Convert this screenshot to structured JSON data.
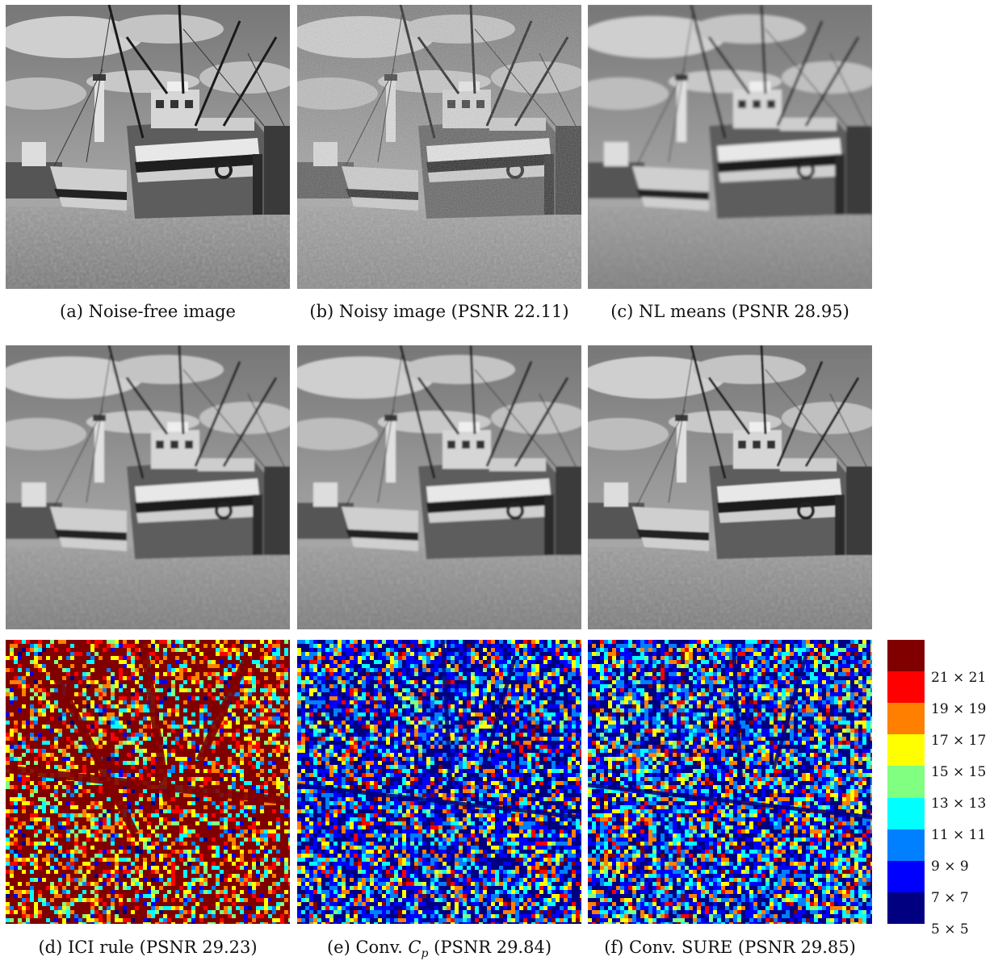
{
  "figure": {
    "captions": [
      {
        "id": "a",
        "text": "(a)  Noise-free image"
      },
      {
        "id": "b",
        "text": "(b)  Noisy image (PSNR 22.11)"
      },
      {
        "id": "c",
        "text": "(c)  NL means (PSNR 28.95)"
      },
      {
        "id": "d",
        "text": "(d)  ICI rule (PSNR 29.23)"
      },
      {
        "id": "e",
        "text_prefix": "(e)  Conv. ",
        "math_main": "C",
        "math_sub": "p",
        "text_suffix": " (PSNR 29.84)"
      },
      {
        "id": "f",
        "text": "(f)  Conv. SURE (PSNR 29.85)"
      }
    ],
    "colorbar": {
      "labels": [
        "21 × 21",
        "19 × 19",
        "17 × 17",
        "15 × 15",
        "13 × 13",
        "11 × 11",
        "9 × 9",
        "7 × 7",
        "5 × 5"
      ],
      "colors": [
        "#800000",
        "#ff0000",
        "#ff8000",
        "#ffff00",
        "#80ff80",
        "#00ffff",
        "#0080ff",
        "#0000ff",
        "#000080"
      ]
    }
  }
}
